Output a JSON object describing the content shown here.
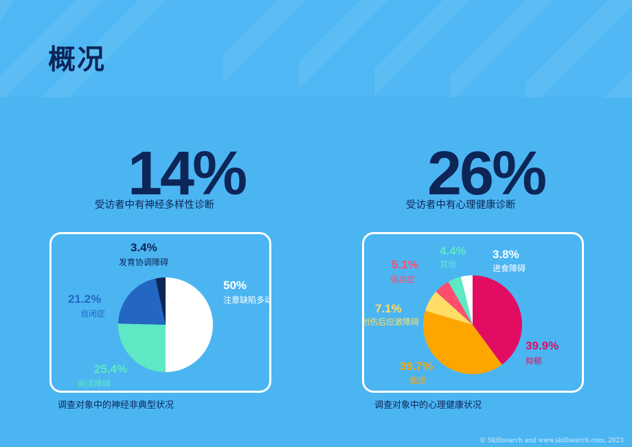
{
  "page": {
    "title": "概况"
  },
  "stats": [
    {
      "value": "14%",
      "caption": "受访者中有神经多样性诊断"
    },
    {
      "value": "26%",
      "caption": "受访者中有心理健康诊断"
    }
  ],
  "panels": [
    {
      "caption": "调查对象中的神经非典型状况"
    },
    {
      "caption": "调查对象中的心理健康状况"
    }
  ],
  "chart_data": [
    {
      "type": "pie",
      "slices": [
        {
          "label": "注意缺陷多动障碍",
          "value": 50,
          "display": "50%",
          "color": "#ffffff",
          "label_color": "#ffffff"
        },
        {
          "label": "阅读障碍",
          "value": 25.4,
          "display": "25.4%",
          "color": "#5ee8c4",
          "label_color": "#5ee8c4"
        },
        {
          "label": "自闭症",
          "value": 21.2,
          "display": "21.2%",
          "color": "#2367c2",
          "label_color": "#2367c2"
        },
        {
          "label": "发育协调障碍",
          "value": 3.4,
          "display": "3.4%",
          "color": "#0d2557",
          "label_color": "#0d2557"
        }
      ]
    },
    {
      "type": "pie",
      "slices": [
        {
          "label": "抑郁",
          "value": 39.9,
          "display": "39.9%",
          "color": "#e20d62",
          "label_color": "#e20d62"
        },
        {
          "label": "焦虑",
          "value": 39.7,
          "display": "39.7%",
          "color": "#ffa500",
          "label_color": "#ffa500"
        },
        {
          "label": "创伤后应激障碍",
          "value": 7.1,
          "display": "7.1%",
          "color": "#ffdd66",
          "label_color": "#ffdd66"
        },
        {
          "label": "强迫症",
          "value": 5.1,
          "display": "5.1%",
          "color": "#ff4d6d",
          "label_color": "#ff4d6d"
        },
        {
          "label": "其他",
          "value": 4.4,
          "display": "4.4%",
          "color": "#5ee8c4",
          "label_color": "#5ee8c4"
        },
        {
          "label": "进食障碍",
          "value": 3.8,
          "display": "3.8%",
          "color": "#ffffff",
          "label_color": "#ffffff"
        }
      ]
    }
  ],
  "footer": {
    "text": "© Skillsearch and www.skillsearch.com, 2023"
  }
}
